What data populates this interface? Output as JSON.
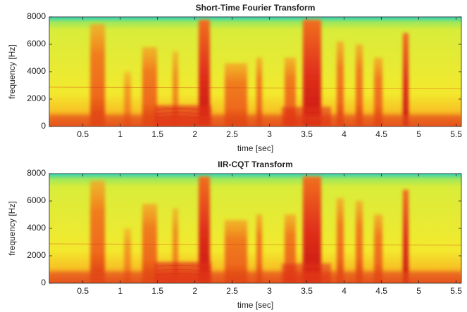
{
  "chart_data": [
    {
      "type": "spectrogram",
      "title": "Short-Time Fourier Transform",
      "xlabel": "time [sec]",
      "ylabel": "frequency [Hz]",
      "xlim": [
        0.05,
        5.57
      ],
      "ylim": [
        0,
        8000
      ],
      "xticks": [
        0.5,
        1,
        1.5,
        2,
        2.5,
        3,
        3.5,
        4,
        4.5,
        5,
        5.5
      ],
      "yticks": [
        0,
        2000,
        4000,
        6000,
        8000
      ]
    },
    {
      "type": "spectrogram",
      "title": "IIR-CQT Transform",
      "xlabel": "time [sec]",
      "ylabel": "frequency [Hz]",
      "xlim": [
        0.05,
        5.57
      ],
      "ylim": [
        0,
        8000
      ],
      "xticks": [
        0.5,
        1,
        1.5,
        2,
        2.5,
        3,
        3.5,
        4,
        4.5,
        5,
        5.5
      ],
      "yticks": [
        0,
        2000,
        4000,
        6000,
        8000
      ]
    }
  ]
}
